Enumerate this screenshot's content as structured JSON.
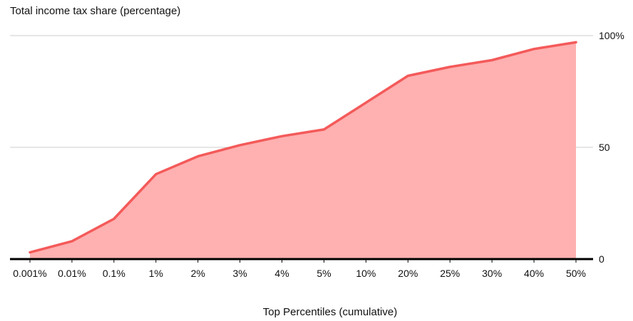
{
  "chart_data": {
    "type": "area",
    "title": "Total income tax share (percentage)",
    "xlabel": "Top Percentiles (cumulative)",
    "ylabel": "",
    "categories": [
      "0.001%",
      "0.01%",
      "0.1%",
      "1%",
      "2%",
      "3%",
      "4%",
      "5%",
      "10%",
      "20%",
      "25%",
      "30%",
      "40%",
      "50%"
    ],
    "series": [
      {
        "values": [
          3,
          8,
          18,
          38,
          46,
          51,
          55,
          58,
          70,
          82,
          86,
          89,
          94,
          97
        ]
      }
    ],
    "ylim": [
      0,
      100
    ],
    "y_ticks": [
      {
        "value": 0,
        "label": "0"
      },
      {
        "value": 50,
        "label": "50"
      },
      {
        "value": 100,
        "label": "100%"
      }
    ],
    "y_axis_side": "right",
    "grid": true,
    "colors": {
      "fill": "#ffb0b0",
      "line": "#f45a5a",
      "grid": "#d6d6d6",
      "baseline": "#000000"
    }
  }
}
